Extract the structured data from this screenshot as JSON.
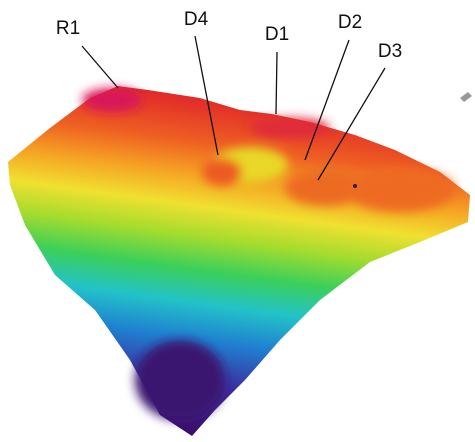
{
  "labels": [
    "R1",
    "D4",
    "D1",
    "D2",
    "D3"
  ]
}
